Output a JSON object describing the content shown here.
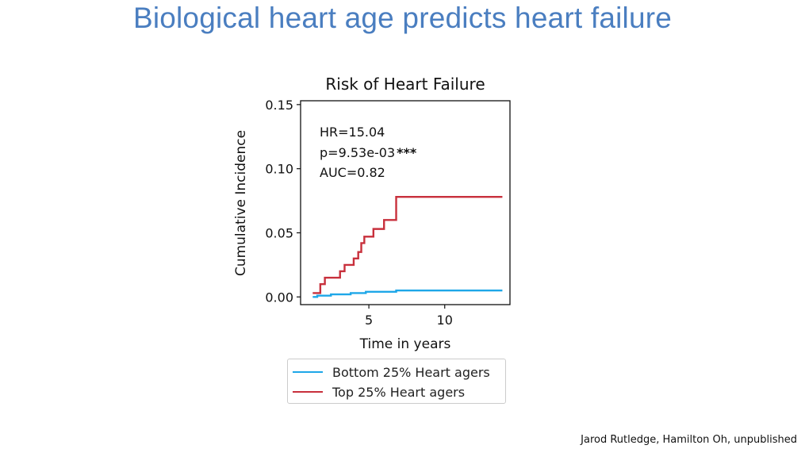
{
  "slide": {
    "title": "Biological heart age predicts heart failure",
    "credit": "Jarod Rutledge, Hamilton Oh, unpublished"
  },
  "chart_data": {
    "type": "line",
    "title": "Risk of Heart Failure",
    "xlabel": "Time in years",
    "ylabel": "Cumulative Incidence",
    "xlim": [
      0.5,
      14.3
    ],
    "ylim": [
      -0.006,
      0.153
    ],
    "x_ticks": [
      5,
      10
    ],
    "y_ticks": [
      0.0,
      0.05,
      0.1,
      0.15
    ],
    "y_tick_labels": [
      "0.00",
      "0.05",
      "0.10",
      "0.15"
    ],
    "grid": false,
    "legend_position": "below",
    "annotations": [
      "HR=15.04",
      "p=9.53e-03",
      "***",
      "AUC=0.82"
    ],
    "series": [
      {
        "name": "Bottom 25% Heart agers",
        "color": "#1ea7e8",
        "step": true,
        "x": [
          1.3,
          1.6,
          2.5,
          3.8,
          4.8,
          6.8,
          13.8
        ],
        "y": [
          0.0,
          0.001,
          0.002,
          0.003,
          0.004,
          0.005,
          0.005
        ]
      },
      {
        "name": "Top 25% Heart agers",
        "color": "#c8303c",
        "step": true,
        "x": [
          1.3,
          1.8,
          2.1,
          3.1,
          3.4,
          4.0,
          4.3,
          4.5,
          4.7,
          5.3,
          6.0,
          6.8,
          13.8
        ],
        "y": [
          0.003,
          0.01,
          0.015,
          0.02,
          0.025,
          0.03,
          0.035,
          0.042,
          0.047,
          0.053,
          0.06,
          0.078,
          0.078
        ]
      }
    ]
  }
}
